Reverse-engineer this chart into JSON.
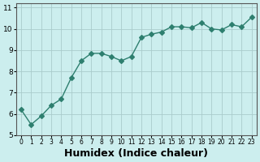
{
  "x": [
    0,
    1,
    2,
    3,
    4,
    5,
    6,
    7,
    8,
    9,
    10,
    11,
    12,
    13,
    14,
    15,
    16,
    17,
    18,
    19,
    20,
    21,
    22,
    23
  ],
  "y": [
    6.2,
    5.5,
    5.9,
    6.4,
    6.7,
    7.7,
    8.5,
    8.85,
    8.85,
    8.7,
    8.5,
    8.7,
    9.6,
    9.75,
    9.85,
    10.1,
    10.1,
    10.05,
    10.3,
    10.0,
    9.95,
    10.2,
    10.1,
    10.55
  ],
  "line_color": "#2e7f6f",
  "marker": "D",
  "marker_size": 3,
  "bg_color": "#cceeee",
  "grid_color": "#aacccc",
  "xlabel": "Humidex (Indice chaleur)",
  "xlabel_fontsize": 9,
  "xlim": [
    -0.5,
    23.5
  ],
  "ylim": [
    5.0,
    11.2
  ],
  "yticks": [
    5,
    6,
    7,
    8,
    9,
    10,
    11
  ],
  "xtick_labels": [
    "0",
    "1",
    "2",
    "3",
    "4",
    "5",
    "6",
    "7",
    "8",
    "9",
    "10",
    "11",
    "12",
    "13",
    "14",
    "15",
    "16",
    "17",
    "18",
    "19",
    "20",
    "21",
    "22",
    "23"
  ]
}
